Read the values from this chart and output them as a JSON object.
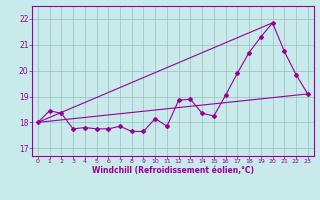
{
  "xlabel": "Windchill (Refroidissement éolien,°C)",
  "xlim": [
    -0.5,
    23.5
  ],
  "ylim": [
    16.7,
    22.5
  ],
  "yticks": [
    17,
    18,
    19,
    20,
    21,
    22
  ],
  "xticks": [
    0,
    1,
    2,
    3,
    4,
    5,
    6,
    7,
    8,
    9,
    10,
    11,
    12,
    13,
    14,
    15,
    16,
    17,
    18,
    19,
    20,
    21,
    22,
    23
  ],
  "background_color": "#c8eaea",
  "grid_color": "#9bbfbf",
  "line_color": "#990099",
  "line1_x": [
    0,
    1,
    2,
    3,
    4,
    5,
    6,
    7,
    8,
    9,
    10,
    11,
    12,
    13,
    14,
    15,
    16,
    17,
    18,
    19,
    20,
    21,
    22,
    23
  ],
  "line1_y": [
    18.0,
    18.45,
    18.35,
    17.75,
    17.8,
    17.75,
    17.75,
    17.85,
    17.65,
    17.65,
    18.15,
    17.85,
    18.85,
    18.9,
    18.35,
    18.25,
    19.05,
    19.9,
    20.7,
    21.3,
    21.85,
    20.75,
    19.85,
    19.1
  ],
  "line2_x": [
    0,
    23
  ],
  "line2_y": [
    18.0,
    19.1
  ],
  "line3_x": [
    0,
    20
  ],
  "line3_y": [
    18.0,
    21.85
  ]
}
